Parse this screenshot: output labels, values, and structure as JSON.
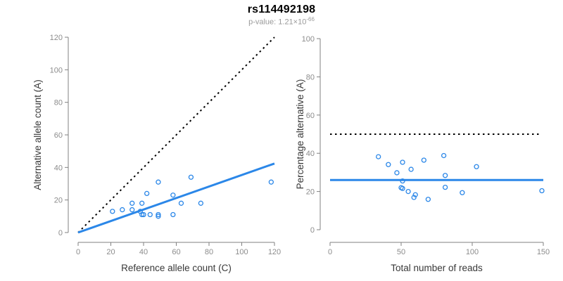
{
  "header": {
    "title": "rs114492198",
    "subtitle_prefix": "p-value: 1.21×10",
    "subtitle_exponent": "-66"
  },
  "colors": {
    "accent_blue": "#2b87e8",
    "line_black": "#000000",
    "axis_line": "#808080",
    "tick_label": "#8c8c8c",
    "axis_title": "#383838",
    "subtitle_gray": "#9a9a9a"
  },
  "chart_data": [
    {
      "type": "scatter",
      "title": "",
      "xlabel": "Reference allele count (C)",
      "ylabel": "Alternative allele count (A)",
      "xlim": [
        0,
        120
      ],
      "ylim": [
        0,
        120
      ],
      "xticks": [
        0,
        20,
        40,
        60,
        80,
        100,
        120
      ],
      "yticks": [
        0,
        20,
        40,
        60,
        80,
        100,
        120
      ],
      "grid": false,
      "legend": "none",
      "points": [
        [
          21,
          13
        ],
        [
          27,
          14
        ],
        [
          33,
          14
        ],
        [
          33,
          18
        ],
        [
          38,
          13
        ],
        [
          39,
          11
        ],
        [
          39,
          18
        ],
        [
          40,
          11
        ],
        [
          42,
          24
        ],
        [
          44,
          11
        ],
        [
          49,
          10
        ],
        [
          49,
          11
        ],
        [
          49,
          31
        ],
        [
          58,
          11
        ],
        [
          58,
          23
        ],
        [
          63,
          18
        ],
        [
          69,
          34
        ],
        [
          75,
          18
        ],
        [
          118,
          31
        ]
      ],
      "lines": [
        {
          "name": "identity-dotted-line",
          "style": "dotted",
          "color": "#000000",
          "from": [
            0,
            0
          ],
          "to": [
            120,
            120
          ]
        },
        {
          "name": "fit-line",
          "style": "solid",
          "color": "#2b87e8",
          "from": [
            0,
            0
          ],
          "to": [
            120,
            42.4
          ]
        }
      ]
    },
    {
      "type": "scatter",
      "title": "",
      "xlabel": "Total number of reads",
      "ylabel": "Percentage alternative (A)",
      "xlim": [
        0,
        150
      ],
      "ylim": [
        0,
        100
      ],
      "xticks": [
        0,
        50,
        100,
        150
      ],
      "yticks": [
        0,
        20,
        40,
        60,
        80,
        100
      ],
      "grid": false,
      "legend": "none",
      "points": [
        [
          34,
          38.2
        ],
        [
          41,
          34.1
        ],
        [
          47,
          29.8
        ],
        [
          50,
          22.0
        ],
        [
          51,
          35.3
        ],
        [
          51,
          25.5
        ],
        [
          51,
          21.6
        ],
        [
          55,
          20.0
        ],
        [
          57,
          31.6
        ],
        [
          59,
          16.9
        ],
        [
          60,
          18.3
        ],
        [
          66,
          36.4
        ],
        [
          69,
          15.9
        ],
        [
          80,
          38.8
        ],
        [
          81,
          28.4
        ],
        [
          81,
          22.2
        ],
        [
          93,
          19.4
        ],
        [
          103,
          33.0
        ],
        [
          149,
          20.4
        ]
      ],
      "lines": [
        {
          "name": "fifty-percent-dotted-line",
          "style": "dotted",
          "color": "#000000",
          "from": [
            0,
            50
          ],
          "to": [
            147,
            50
          ]
        },
        {
          "name": "mean-percentage-line",
          "style": "solid",
          "color": "#2b87e8",
          "from": [
            0,
            26
          ],
          "to": [
            150,
            26
          ]
        }
      ]
    }
  ]
}
